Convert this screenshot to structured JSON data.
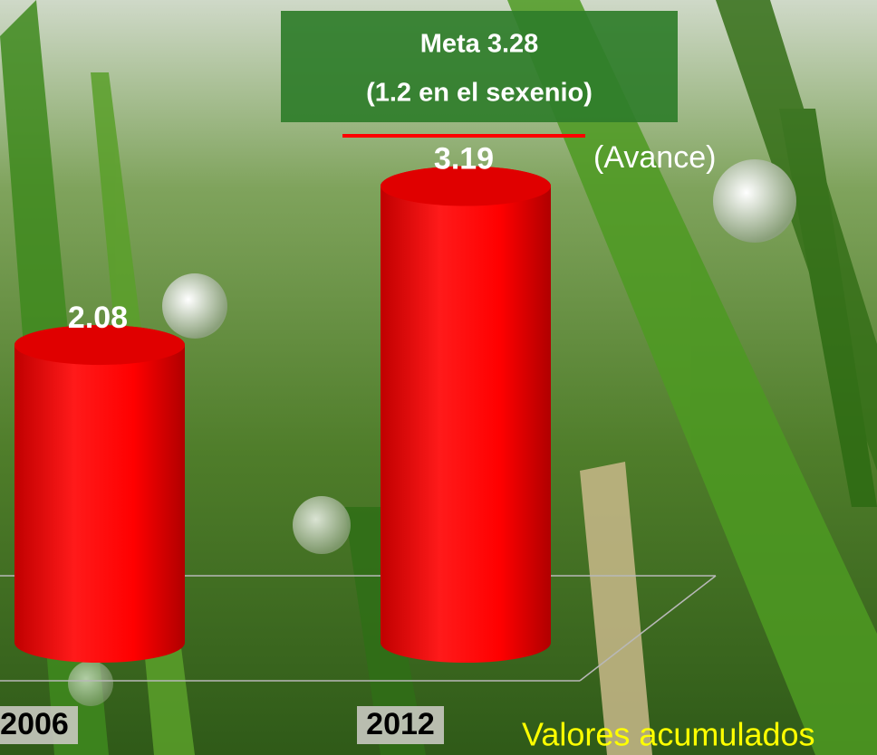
{
  "chart_data": {
    "type": "bar",
    "annotations": {
      "target_title": "Meta 3.28",
      "target_subtitle": "(1.2 en el sexenio)",
      "progress_label": "(Avance)",
      "footnote": "Valores acumulados"
    },
    "target": 3.28,
    "categories": [
      "2006",
      "2012"
    ],
    "values": [
      2.08,
      3.19
    ],
    "color": "#ff0000",
    "ylim": [
      0,
      4.3
    ]
  }
}
